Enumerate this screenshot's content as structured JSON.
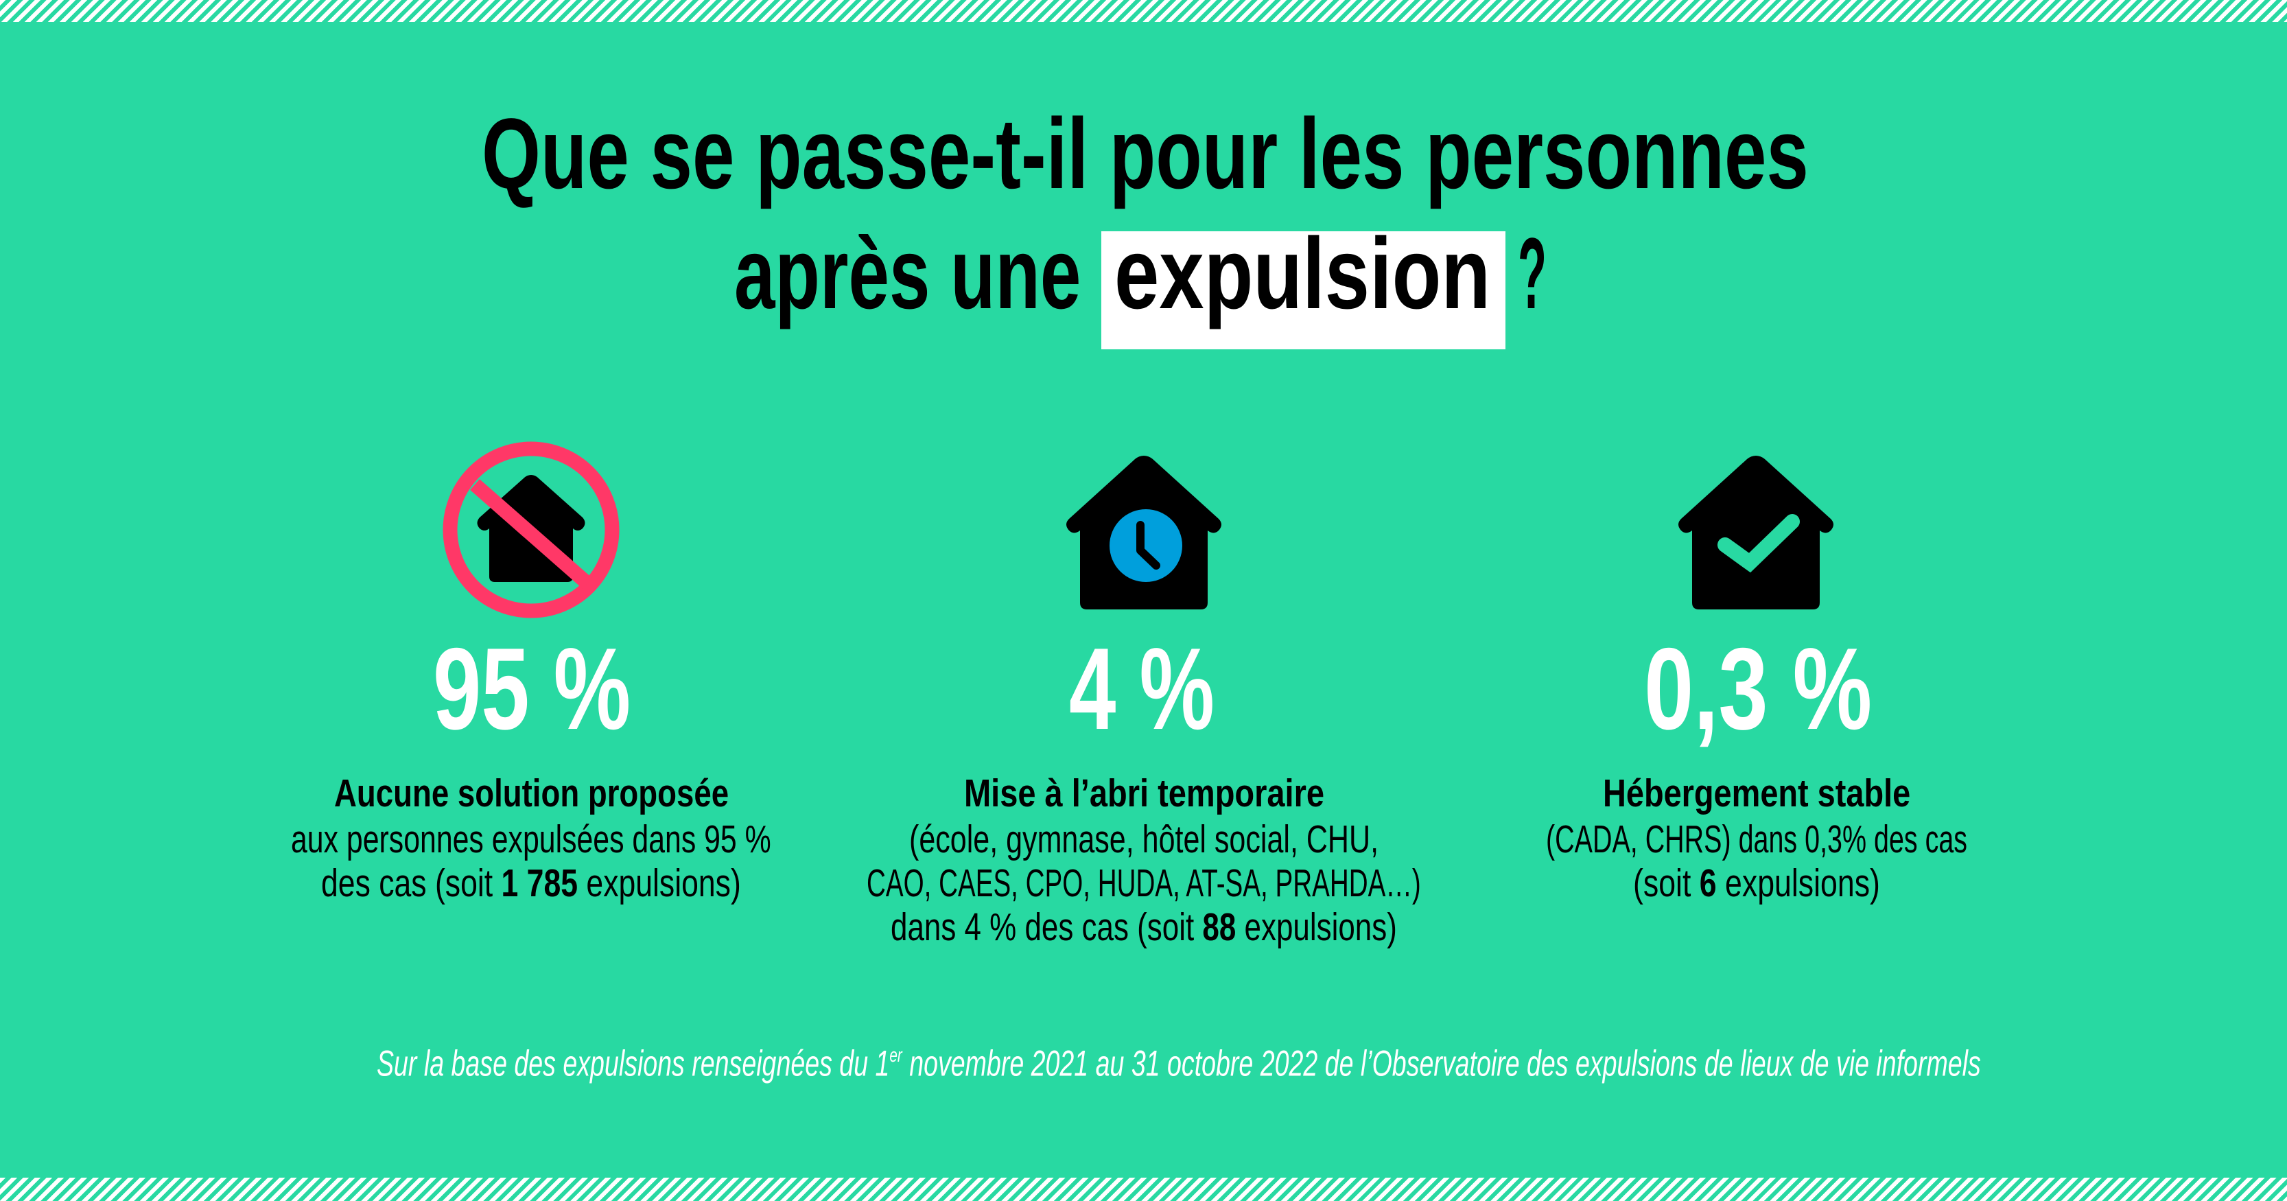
{
  "colors": {
    "background": "#28d9a2",
    "stripes": "#ffffff",
    "forbidden_red": "#ff3867",
    "clock_blue": "#009fdc",
    "house": "#000000",
    "highlight_box": "#ffffff",
    "percentage_text": "#ffffff",
    "body_text": "#000000"
  },
  "title": {
    "line1": "Que se passe-t-il pour les personnes",
    "line2_prefix": "après une",
    "line2_highlight": "expulsion",
    "line2_suffix": "?"
  },
  "stats": [
    {
      "icon": "house-forbidden-icon",
      "percentage": "95 %",
      "heading": "Aucune solution proposée",
      "lines": [
        {
          "text": "aux personnes expulsées dans 95 %"
        },
        {
          "before": "des cas (soit ",
          "bold": "1 785",
          "after": " expulsions)"
        }
      ]
    },
    {
      "icon": "house-clock-icon",
      "percentage": "4 %",
      "heading": "Mise à l’abri temporaire",
      "lines": [
        {
          "text": "(école, gymnase, hôtel social, CHU,"
        },
        {
          "text": "CAO, CAES, CPO, HUDA, AT-SA, PRAHDA…)"
        },
        {
          "before": "dans 4 % des cas (soit ",
          "bold": "88",
          "after": " expulsions)"
        }
      ]
    },
    {
      "icon": "house-check-icon",
      "percentage": "0,3 %",
      "heading": "Hébergement stable",
      "lines": [
        {
          "text": "(CADA, CHRS) dans 0,3% des cas"
        },
        {
          "before": "(soit ",
          "bold": "6",
          "after": " expulsions)"
        }
      ]
    }
  ],
  "footnote": {
    "before": "Sur la base des expulsions renseignées du 1",
    "superscript": "er",
    "after": " novembre 2021 au 31 octobre 2022 de l’Observatoire des expulsions de lieux de vie informels"
  }
}
